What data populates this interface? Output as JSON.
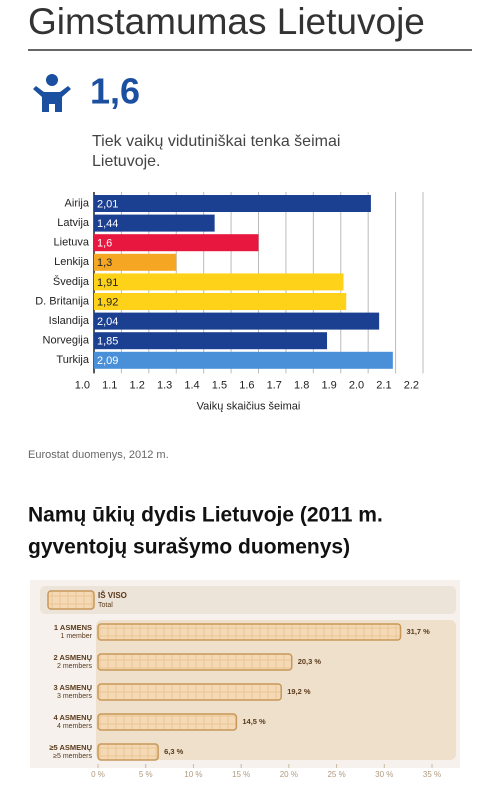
{
  "title": "Gimstamumas Lietuvoje",
  "stat": {
    "value": "1,6",
    "caption": [
      "Tiek vaikų vidutiniškai tenka šeimai",
      "Lietuvoje."
    ]
  },
  "source": "Eurostat duomenys, 2012 m.",
  "section_title": [
    "Namų ūkių dydis Lietuvoje (2011 m.",
    "gyventojų surašymo duomenys)"
  ],
  "chart_data": [
    {
      "type": "bar",
      "orientation": "horizontal",
      "categories": [
        "Airija",
        "Latvija",
        "Lietuva",
        "Lenkija",
        "Švedija",
        "D. Britanija",
        "Islandija",
        "Norvegija",
        "Turkija"
      ],
      "values": [
        2.01,
        1.44,
        1.6,
        1.3,
        1.91,
        1.92,
        2.04,
        1.85,
        2.09
      ],
      "value_labels": [
        "2,01",
        "1,44",
        "1,6",
        "1,3",
        "1,91",
        "1,92",
        "2,04",
        "1,85",
        "2,09"
      ],
      "colors": [
        "#1b3f91",
        "#1b3f91",
        "#e8173f",
        "#f5a623",
        "#ffd21a",
        "#ffd21a",
        "#1b3f91",
        "#1b3f91",
        "#4a90d9"
      ],
      "xlim": [
        1.0,
        2.2
      ],
      "xticks": [
        {
          "value": 1.0,
          "label": "1.0"
        },
        1.1,
        1.2,
        1.3,
        1.4,
        1.5,
        1.6,
        1.7,
        1.8,
        1.9,
        {
          "value": 2.0,
          "label": "2.0"
        },
        2.1,
        2.2
      ],
      "xlabel": "Vaikų skaičius šeimai",
      "grid": true
    },
    {
      "type": "bar",
      "orientation": "horizontal",
      "legend": {
        "label": "IŠ VISO",
        "label_en": "Total"
      },
      "categories": [
        "1 ASMENS",
        "2 ASMENŲ",
        "3 ASMENŲ",
        "4 ASMENŲ",
        "≥5 ASMENŲ"
      ],
      "categories_en": [
        "1 member",
        "2 members",
        "3 members",
        "4 members",
        "≥5 members"
      ],
      "values": [
        31.7,
        20.3,
        19.2,
        14.5,
        6.3
      ],
      "value_labels": [
        "31,7 %",
        "20,3 %",
        "19,2 %",
        "14,5 %",
        "6,3 %"
      ],
      "color": "#f5d9b5",
      "xlim": [
        0,
        35
      ],
      "xticks": [
        {
          "value": 0,
          "label": "0 %"
        },
        {
          "value": 5,
          "label": "5 %"
        },
        {
          "value": 10,
          "label": "10 %"
        },
        {
          "value": 15,
          "label": "15 %"
        },
        {
          "value": 20,
          "label": "20 %"
        },
        {
          "value": 25,
          "label": "25 %"
        },
        {
          "value": 30,
          "label": "30 %"
        },
        {
          "value": 35,
          "label": "35 %"
        }
      ]
    }
  ]
}
